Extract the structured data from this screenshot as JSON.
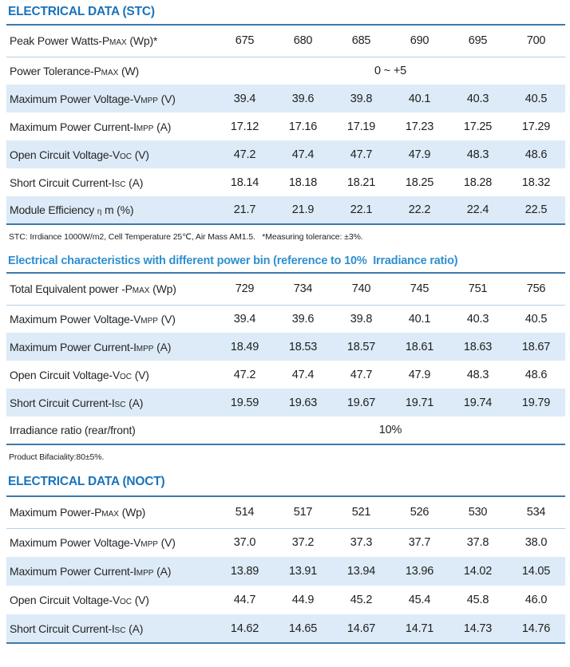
{
  "colors": {
    "section_title_major": "#1a73ba",
    "section_title_minor": "#2e8fd0",
    "row_alt_bg": "#dcebf7",
    "table_border": "#3e78ae",
    "row_divider": "#b7cfe3"
  },
  "sections": [
    {
      "id": "stc",
      "title": "ELECTRICAL DATA (STC)",
      "title_style": "major",
      "rows": [
        {
          "label_pre": "Peak Power Watts-P",
          "label_cap": "MAX",
          "label_post": " (Wp)*",
          "values": [
            "675",
            "680",
            "685",
            "690",
            "695",
            "700"
          ],
          "alt": false,
          "first": true
        },
        {
          "label_pre": "Power Tolerance-P",
          "label_cap": "MAX",
          "label_post": " (W)",
          "merged": "0 ~ +5",
          "alt": false
        },
        {
          "label_pre": "Maximum Power Voltage-V",
          "label_cap": "MPP",
          "label_post": " (V)",
          "values": [
            "39.4",
            "39.6",
            "39.8",
            "40.1",
            "40.3",
            "40.5"
          ],
          "alt": true
        },
        {
          "label_pre": "Maximum Power Current-I",
          "label_cap": "MPP",
          "label_post": " (A)",
          "values": [
            "17.12",
            "17.16",
            "17.19",
            "17.23",
            "17.25",
            "17.29"
          ],
          "alt": false
        },
        {
          "label_pre": "Open Circuit Voltage-V",
          "label_cap": "OC",
          "label_post": " (V)",
          "values": [
            "47.2",
            "47.4",
            "47.7",
            "47.9",
            "48.3",
            "48.6"
          ],
          "alt": true
        },
        {
          "label_pre": "Short Circuit Current-I",
          "label_cap": "SC",
          "label_post": " (A)",
          "values": [
            "18.14",
            "18.18",
            "18.21",
            "18.25",
            "18.28",
            "18.32"
          ],
          "alt": false
        },
        {
          "label_pre": "Module Efficiency ",
          "label_cap": "η",
          "label_post": " m (%)",
          "values": [
            "21.7",
            "21.9",
            "22.1",
            "22.2",
            "22.4",
            "22.5"
          ],
          "alt": true
        }
      ],
      "footnote": "STC: Irrdiance 1000W/m2, Cell Temperature 25℃, Air Mass AM1.5.   *Measuring tolerance: ±3%."
    },
    {
      "id": "bin",
      "title": "Electrical characteristics with different power bin (reference to 10%  Irradiance ratio)",
      "title_style": "minor",
      "rows": [
        {
          "label_pre": "Total Equivalent power -P",
          "label_cap": "MAX",
          "label_post": " (Wp)",
          "values": [
            "729",
            "734",
            "740",
            "745",
            "751",
            "756"
          ],
          "alt": false,
          "first": true
        },
        {
          "label_pre": "Maximum Power Voltage-V",
          "label_cap": "MPP",
          "label_post": "  (V)",
          "values": [
            "39.4",
            "39.6",
            "39.8",
            "40.1",
            "40.3",
            "40.5"
          ],
          "alt": false
        },
        {
          "label_pre": "Maximum Power Current-I",
          "label_cap": "MPP",
          "label_post": " (A)",
          "values": [
            "18.49",
            "18.53",
            "18.57",
            "18.61",
            "18.63",
            "18.67"
          ],
          "alt": true
        },
        {
          "label_pre": "Open Circuit Voltage-V",
          "label_cap": "OC",
          "label_post": "  (V)",
          "values": [
            "47.2",
            "47.4",
            "47.7",
            "47.9",
            "48.3",
            "48.6"
          ],
          "alt": false
        },
        {
          "label_pre": "Short Circuit Current-I",
          "label_cap": "SC",
          "label_post": " (A)",
          "values": [
            "19.59",
            "19.63",
            "19.67",
            "19.71",
            "19.74",
            "19.79"
          ],
          "alt": true
        },
        {
          "label_pre": "Irradiance ratio (rear/front)",
          "label_cap": "",
          "label_post": "",
          "merged": "10%",
          "alt": false
        }
      ],
      "footnote": "Product Bifaciality:80±5%."
    },
    {
      "id": "noct",
      "title": "ELECTRICAL DATA (NOCT)",
      "title_style": "major",
      "rows": [
        {
          "label_pre": "Maximum Power-P",
          "label_cap": "MAX",
          "label_post": " (Wp)",
          "values": [
            "514",
            "517",
            "521",
            "526",
            "530",
            "534"
          ],
          "alt": false,
          "first": true
        },
        {
          "label_pre": "Maximum Power Voltage-V",
          "label_cap": "MPP",
          "label_post": " (V)",
          "values": [
            "37.0",
            "37.2",
            "37.3",
            "37.7",
            "37.8",
            "38.0"
          ],
          "alt": false
        },
        {
          "label_pre": "Maximum Power Current-I",
          "label_cap": "MPP",
          "label_post": " (A)",
          "values": [
            "13.89",
            "13.91",
            "13.94",
            "13.96",
            "14.02",
            "14.05"
          ],
          "alt": true
        },
        {
          "label_pre": "Open Circuit Voltage-V",
          "label_cap": "OC",
          "label_post": " (V)",
          "values": [
            "44.7",
            "44.9",
            "45.2",
            "45.4",
            "45.8",
            "46.0"
          ],
          "alt": false
        },
        {
          "label_pre": "Short Circuit Current-I",
          "label_cap": "SC",
          "label_post": " (A)",
          "values": [
            "14.62",
            "14.65",
            "14.67",
            "14.71",
            "14.73",
            "14.76"
          ],
          "alt": true
        }
      ],
      "footnote": ""
    }
  ]
}
